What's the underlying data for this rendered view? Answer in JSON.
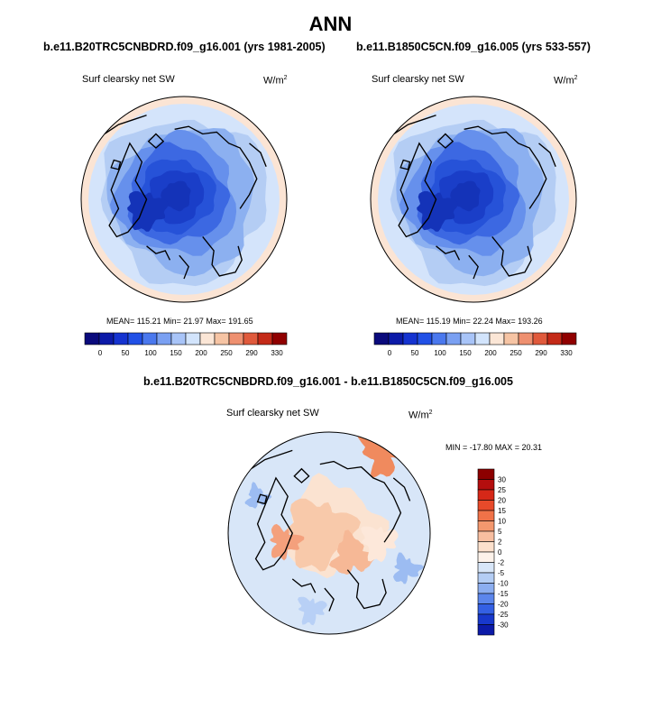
{
  "title": "ANN",
  "panel_left": {
    "case": "b.e11.B20TRC5CNBDRD.f09_g16.001 (yrs 1981-2005)",
    "variable": "Surf clearsky net SW",
    "units": "W/m",
    "units_exp": "2",
    "stats": "MEAN= 115.21  Min=  21.97  Max= 191.65"
  },
  "panel_right": {
    "case": "b.e11.B1850C5CN.f09_g16.005 (yrs 533-557)",
    "variable": "Surf clearsky net SW",
    "units": "W/m",
    "units_exp": "2",
    "stats": "MEAN= 115.19  Min=  22.24  Max= 193.26"
  },
  "panel_diff": {
    "case": "b.e11.B20TRC5CNBDRD.f09_g16.001 - b.e11.B1850C5CN.f09_g16.005",
    "variable": "Surf clearsky net SW",
    "units": "W/m",
    "units_exp": "2",
    "stats": "MIN = -17.80 MAX =  20.31"
  },
  "chart_data": [
    {
      "type": "heatmap",
      "projection": "north polar stereographic",
      "title": "b.e11.B20TRC5CNBDRD.f09_g16.001 (yrs 1981-2005)",
      "variable": "Surf clearsky net SW",
      "units": "W/m2",
      "mean": 115.21,
      "min": 21.97,
      "max": 191.65,
      "colorbar_ticks": [
        "0",
        "50",
        "100",
        "150",
        "200",
        "250",
        "290",
        "330"
      ],
      "colorbar_colors": [
        "#0a0a7c",
        "#0c1aa8",
        "#1533d0",
        "#2150e6",
        "#4a78ee",
        "#7aa0f2",
        "#a8c4f8",
        "#d2e4fc",
        "#fbe6d6",
        "#f6c4a4",
        "#ee9070",
        "#e05a3c",
        "#c42a18",
        "#900000"
      ]
    },
    {
      "type": "heatmap",
      "projection": "north polar stereographic",
      "title": "b.e11.B1850C5CN.f09_g16.005 (yrs 533-557)",
      "variable": "Surf clearsky net SW",
      "units": "W/m2",
      "mean": 115.19,
      "min": 22.24,
      "max": 193.26,
      "colorbar_ticks": [
        "0",
        "50",
        "100",
        "150",
        "200",
        "250",
        "290",
        "330"
      ],
      "colorbar_colors": [
        "#0a0a7c",
        "#0c1aa8",
        "#1533d0",
        "#2150e6",
        "#4a78ee",
        "#7aa0f2",
        "#a8c4f8",
        "#d2e4fc",
        "#fbe6d6",
        "#f6c4a4",
        "#ee9070",
        "#e05a3c",
        "#c42a18",
        "#900000"
      ]
    },
    {
      "type": "heatmap",
      "projection": "north polar stereographic",
      "title": "b.e11.B20TRC5CNBDRD.f09_g16.001 - b.e11.B1850C5CN.f09_g16.005",
      "variable": "Surf clearsky net SW",
      "units": "W/m2",
      "min": -17.8,
      "max": 20.31,
      "colorbar_ticks": [
        "30",
        "25",
        "20",
        "15",
        "10",
        "5",
        "2",
        "0",
        "-2",
        "-5",
        "-10",
        "-15",
        "-20",
        "-25",
        "-30"
      ],
      "colorbar_colors": [
        "#8c0000",
        "#b40e0e",
        "#d62818",
        "#e84a2a",
        "#f07248",
        "#f4986e",
        "#f8bea0",
        "#fce0cc",
        "#fdf2ea",
        "#d8e6f8",
        "#b4cdf4",
        "#8caef0",
        "#5c86ec",
        "#3460e4",
        "#1838cc",
        "#0c1aa8"
      ]
    }
  ]
}
